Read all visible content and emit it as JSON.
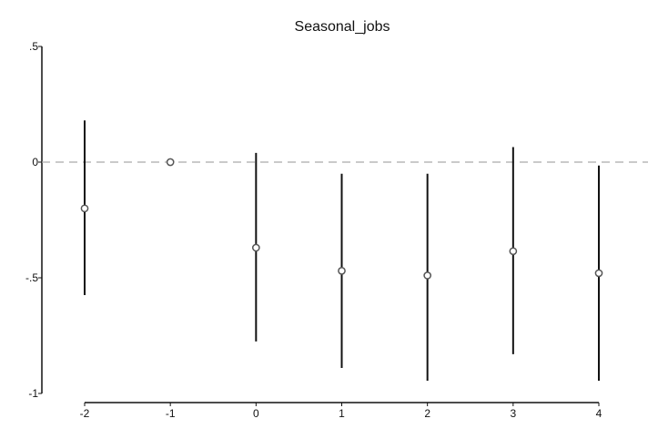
{
  "chart_data": {
    "type": "scatter",
    "title": "Seasonal_jobs",
    "xlabel": "",
    "ylabel": "",
    "x": [
      -2,
      -1,
      0,
      1,
      2,
      3,
      4
    ],
    "estimate": [
      -0.2,
      0.0,
      -0.37,
      -0.47,
      -0.49,
      -0.385,
      -0.48
    ],
    "ci_low": [
      -0.575,
      0.0,
      -0.775,
      -0.89,
      -0.945,
      -0.83,
      -0.945
    ],
    "ci_high": [
      0.18,
      0.0,
      0.04,
      -0.05,
      -0.05,
      0.065,
      -0.015
    ],
    "x_ticks": [
      "-2",
      "-1",
      "0",
      "1",
      "2",
      "3",
      "4"
    ],
    "y_ticks": [
      ".5",
      "0",
      "-.5",
      "-1"
    ],
    "y_tick_values": [
      0.5,
      0,
      -0.5,
      -1
    ],
    "xlim": [
      -2,
      4
    ],
    "ylim": [
      -1,
      0.5
    ],
    "reference_line": 0,
    "grid": false,
    "legend": "none",
    "colors": {
      "point": "#555555",
      "ci": "#111111",
      "reference": "#aaaaaa",
      "axis": "#111111"
    }
  }
}
